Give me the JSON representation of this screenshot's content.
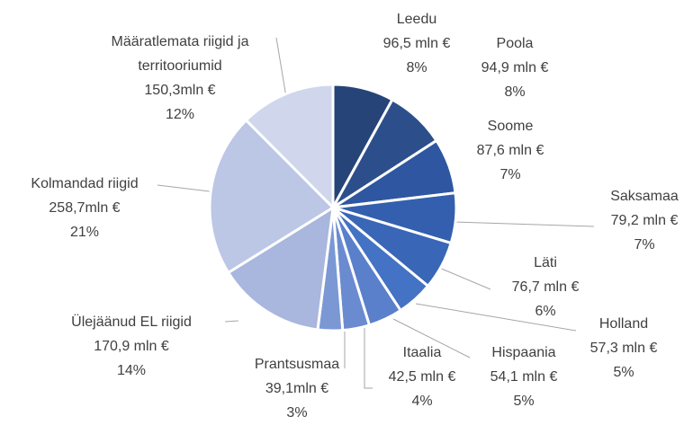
{
  "chart_data": {
    "type": "pie",
    "categories": [
      "Leedu",
      "Poola",
      "Soome",
      "Saksamaa",
      "Läti",
      "Holland",
      "Hispaania",
      "Itaalia",
      "Prantsusmaa",
      "Ülejäänud EL riigid",
      "Kolmandad riigid",
      "Määratlemata riigid ja territooriumid"
    ],
    "values": [
      96.5,
      94.9,
      87.6,
      79.2,
      76.7,
      57.3,
      54.1,
      42.5,
      39.1,
      170.9,
      258.7,
      150.3
    ],
    "value_labels": [
      "96,5 mln €",
      "94,9 mln €",
      "87,6 mln €",
      "79,2 mln €",
      "76,7 mln €",
      "57,3 mln €",
      "54,1 mln €",
      "42,5 mln €",
      "39,1mln €",
      "170,9 mln €",
      "258,7mln €",
      "150,3mln €"
    ],
    "percent_labels": [
      "8%",
      "8%",
      "7%",
      "7%",
      "6%",
      "5%",
      "5%",
      "4%",
      "3%",
      "14%",
      "21%",
      "12%"
    ],
    "colors": [
      "#264478",
      "#2c4f8c",
      "#2f56a0",
      "#335fae",
      "#3a66b8",
      "#4472c4",
      "#5a7fcb",
      "#6a8bd0",
      "#7b98d5",
      "#a9b6dd",
      "#bcc6e5",
      "#d0d6ec"
    ]
  }
}
